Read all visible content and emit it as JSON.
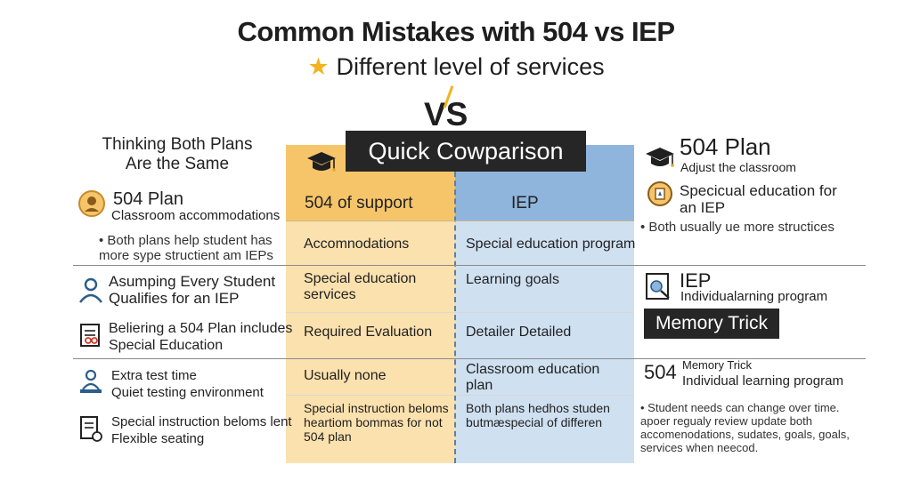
{
  "title": "Common Mistakes with 504 vs IEP",
  "subtitle": "Different level of services",
  "vs": "VS",
  "quick_comparison": "Quick Cowparison",
  "table": {
    "col_504_header": "504 of support",
    "col_iep_header": "IEP",
    "rows": [
      {
        "c504": "Accomnodations",
        "ciep": "Special education program"
      },
      {
        "c504": "Special education services",
        "ciep": "Learning goals"
      },
      {
        "c504": "Required Evaluation",
        "ciep": "Detailer Detailed"
      },
      {
        "c504": "Usually none",
        "ciep": "Classroom education plan"
      },
      {
        "c504": "Special instruction beloms heartiom bommas for not 504 plan",
        "ciep": "Both plans hedhos studen butmæspecial of differen"
      }
    ]
  },
  "left": {
    "mistake1": "Thinking Both Plans Are the Same",
    "plan504_title": "504 Plan",
    "plan504_sub": "Classroom accommodations",
    "bullet": "• Both plans help student has more sype structient am IEPs",
    "mistake2": "Asumping Every Student Qualifies for an IEP",
    "mistake3": "Beliering a 504 Plan includes Special Education",
    "extra_line1": "Extra test time",
    "extra_line2": "Quiet testing environment",
    "special_line1": "Special instruction beloms lent",
    "special_line2": "Flexible seating"
  },
  "right": {
    "plan504_title": "504 Plan",
    "plan504_sub": "Adjust the classroom",
    "special_title": "Specicual education for an IEP",
    "bullet": "• Both usually ue more structices",
    "iep_title": "IEP",
    "iep_sub": "Individualarning program",
    "memory_banner": "Memory Trick",
    "mem_504": "504",
    "mem_line1": "Memory Trick",
    "mem_line2": "Individual learning program",
    "note": "• Student needs can change over time. apoer regualy review update both accomenodations, sudates, goals, goals, services when neecod."
  },
  "colors": {
    "accent_504": "#f6c56a",
    "accent_504_light": "#fbe1ae",
    "accent_iep": "#8fb5dd",
    "accent_iep_light": "#cfe0f1",
    "banner": "#262626",
    "star": "#f3b21f"
  },
  "icons": {
    "left_504": "person-care-icon",
    "left_mistake2": "student-icon",
    "left_mistake3": "checklist-icon",
    "left_extra": "test-taker-icon",
    "left_special": "document-icon",
    "grad_cap": "graduation-cap-icon",
    "right_special": "education-badge-icon",
    "right_iep": "learning-program-icon"
  }
}
